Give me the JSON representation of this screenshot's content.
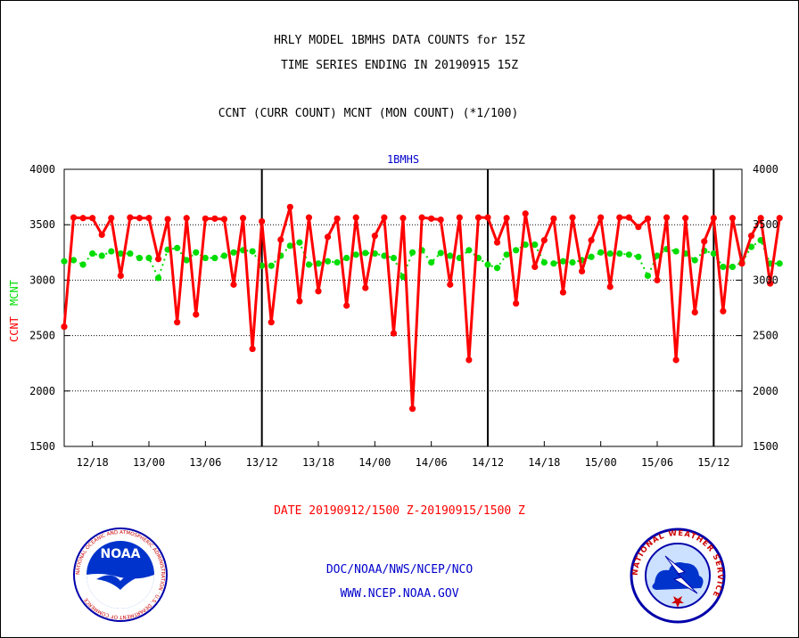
{
  "header": {
    "line1": "HRLY MODEL 1BMHS DATA COUNTS for 15Z",
    "line2": "TIME SERIES ENDING IN 20190915 15Z",
    "line3": "CCNT (CURR COUNT) MCNT (MON COUNT) (*1/100)"
  },
  "footer": {
    "date_range": "DATE 20190912/1500 Z-20190915/1500 Z",
    "org": "DOC/NOAA/NWS/NCEP/NCO",
    "url": "WWW.NCEP.NOAA.GOV"
  },
  "logos": {
    "noaa_left": "NOAA",
    "noaa_ring": "NATIONAL OCEANIC AND ATMOSPHERIC ADMINISTRATION · U.S. DEPARTMENT OF COMMERCE",
    "nws_ring": "NATIONAL WEATHER SERVICE"
  },
  "colors": {
    "ccnt": "#ff0000",
    "mcnt": "#00dd00",
    "title_blue": "#0000cc"
  },
  "chart_data": {
    "type": "line",
    "title": "1BMHS",
    "ylabel_left_ccnt": "CCNT",
    "ylabel_left_mcnt": "MCNT",
    "ylim": [
      1500,
      4000
    ],
    "yticks": [
      1500,
      2000,
      2500,
      3000,
      3500,
      4000
    ],
    "gridlines_y": [
      2000,
      2500,
      3000,
      3500
    ],
    "x_hours_range": [
      0,
      72
    ],
    "xtick_labels": [
      "12/18",
      "13/00",
      "13/06",
      "13/12",
      "13/18",
      "14/00",
      "14/06",
      "14/12",
      "14/18",
      "15/00",
      "15/06",
      "15/12"
    ],
    "xtick_hours": [
      3,
      9,
      15,
      21,
      27,
      33,
      39,
      45,
      51,
      57,
      63,
      69
    ],
    "day_boundaries_hours": [
      21,
      45,
      69
    ],
    "series": [
      {
        "name": "CCNT",
        "values": [
          2580,
          3565,
          3560,
          3560,
          3410,
          3560,
          3040,
          3565,
          3560,
          3560,
          3190,
          3550,
          2620,
          3560,
          2690,
          3555,
          3555,
          3550,
          2960,
          3560,
          2380,
          3530,
          2620,
          3365,
          3660,
          2810,
          3565,
          2900,
          3390,
          3555,
          2770,
          3565,
          2930,
          3400,
          3565,
          2520,
          3560,
          1840,
          3565,
          3555,
          3545,
          2960,
          3565,
          2280,
          3565,
          3565,
          3340,
          3560,
          2790,
          3600,
          3120,
          3360,
          3555,
          2890,
          3565,
          3080,
          3360,
          3565,
          2940,
          3565,
          3565,
          3480,
          3555,
          3000,
          3565,
          2280,
          3560,
          2710,
          3350,
          3560,
          2720,
          3560,
          3150,
          3400,
          3560,
          2970,
          3560
        ]
      },
      {
        "name": "MCNT",
        "values": [
          3170,
          3180,
          3140,
          3240,
          3220,
          3260,
          3240,
          3240,
          3200,
          3200,
          3020,
          3275,
          3290,
          3180,
          3250,
          3200,
          3200,
          3220,
          3250,
          3270,
          3260,
          3130,
          3130,
          3220,
          3310,
          3340,
          3140,
          3150,
          3170,
          3160,
          3200,
          3230,
          3245,
          3240,
          3220,
          3200,
          3030,
          3250,
          3270,
          3160,
          3245,
          3220,
          3200,
          3270,
          3200,
          3140,
          3110,
          3230,
          3270,
          3320,
          3320,
          3160,
          3150,
          3170,
          3160,
          3180,
          3210,
          3250,
          3240,
          3240,
          3230,
          3210,
          3040,
          3220,
          3280,
          3260,
          3240,
          3180,
          3265,
          3240,
          3120,
          3120,
          3160,
          3300,
          3360,
          3150,
          3150
        ]
      }
    ]
  }
}
